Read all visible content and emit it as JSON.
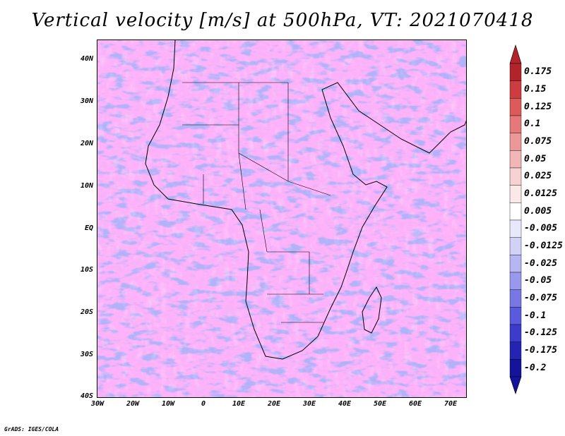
{
  "title": "Vertical velocity [m/s] at 500hPa, VT: 2021070418",
  "footer": "GrADS: IGES/COLA",
  "axes": {
    "x_labels": [
      "30W",
      "20W",
      "10W",
      "0",
      "10E",
      "20E",
      "30E",
      "40E",
      "50E",
      "60E",
      "70E"
    ],
    "y_labels": [
      "40N",
      "30N",
      "20N",
      "10N",
      "EQ",
      "10S",
      "20S",
      "30S",
      "40S"
    ]
  },
  "colorbar": {
    "labels": [
      "0.175",
      "0.15",
      "0.125",
      "0.1",
      "0.075",
      "0.05",
      "0.025",
      "0.0125",
      "0.005",
      "-0.005",
      "-0.0125",
      "-0.025",
      "-0.05",
      "-0.075",
      "-0.1",
      "-0.125",
      "-0.175",
      "-0.2"
    ],
    "colors": [
      "#b3242a",
      "#cc3c40",
      "#dc5a5a",
      "#e57878",
      "#ec9898",
      "#f2b6b6",
      "#f7d2d2",
      "#fbe8e8",
      "#ffffff",
      "#e8e8fb",
      "#d2d2f7",
      "#b6b6f2",
      "#9898ec",
      "#7878e5",
      "#5a5adc",
      "#3c3ccc",
      "#2424b3",
      "#14149a"
    ]
  },
  "chart_data": {
    "type": "heatmap",
    "title": "Vertical velocity [m/s] at 500hPa, VT: 2021070418",
    "variable": "Vertical velocity",
    "units": "m/s",
    "level": "500hPa",
    "valid_time": "2021070418",
    "xlim": [
      -30,
      75
    ],
    "ylim": [
      -40,
      45
    ],
    "x_tick_labels": [
      "30W",
      "20W",
      "10W",
      "0",
      "10E",
      "20E",
      "30E",
      "40E",
      "50E",
      "60E",
      "70E"
    ],
    "y_tick_labels": [
      "40N",
      "30N",
      "20N",
      "10N",
      "EQ",
      "10S",
      "20S",
      "30S",
      "40S"
    ],
    "color_levels": [
      0.175,
      0.15,
      0.125,
      0.1,
      0.075,
      0.05,
      0.025,
      0.0125,
      0.005,
      -0.005,
      -0.0125,
      -0.025,
      -0.05,
      -0.075,
      -0.1,
      -0.125,
      -0.175,
      -0.2
    ]
  }
}
